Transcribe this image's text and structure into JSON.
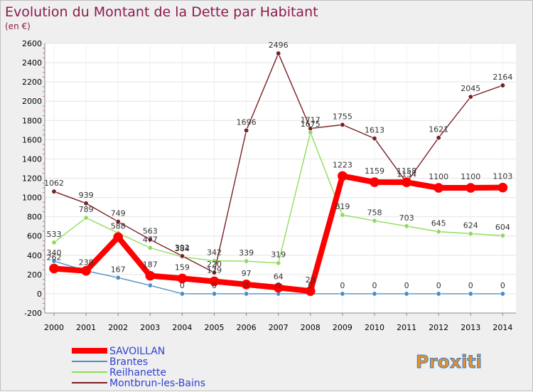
{
  "colors": {
    "title": "#8b1a4a",
    "SAVOILLAN": "#ff0000",
    "Brantes": "#4a8fc7",
    "Reilhanette": "#8fdc5c",
    "Montbrun-les-Bains": "#7a1e24",
    "axis_text": "#000000",
    "legend_text": "#2f3fd1"
  },
  "chart_data": {
    "type": "line",
    "title": "Evolution du Montant de la Dette par Habitant",
    "subtitle": "(en €)",
    "x": [
      "2000",
      "2001",
      "2002",
      "2003",
      "2004",
      "2005",
      "2006",
      "2007",
      "2008",
      "2009",
      "2010",
      "2011",
      "2012",
      "2013",
      "2014"
    ],
    "yticks": [
      "-200",
      "0",
      "200",
      "400",
      "600",
      "800",
      "1000",
      "1200",
      "1400",
      "1600",
      "1800",
      "2000",
      "2200",
      "2400",
      "2600"
    ],
    "ylim": [
      -200,
      2600
    ],
    "grid": true,
    "legend_position": "bottom-left",
    "series": [
      {
        "name": "Brantes",
        "values": [
          340,
          238,
          167,
          87,
          0,
          0,
          0,
          0,
          0,
          0,
          0,
          0,
          0,
          0,
          0
        ],
        "labels": [
          "340",
          "238",
          "167",
          "",
          "0",
          "0",
          "0",
          "0",
          "0",
          "0",
          "0",
          "0",
          "0",
          "0",
          "0"
        ]
      },
      {
        "name": "Reilhanette",
        "values": [
          533,
          789,
          630,
          477,
          384,
          342,
          339,
          319,
          1675,
          819,
          758,
          703,
          645,
          624,
          604
        ],
        "labels": [
          "533",
          "789",
          "",
          "477",
          "384",
          "342",
          "339",
          "319",
          "1675",
          "819",
          "758",
          "703",
          "645",
          "624",
          "604"
        ]
      },
      {
        "name": "Montbrun-les-Bains",
        "values": [
          1062,
          939,
          749,
          563,
          392,
          220,
          1696,
          2496,
          1717,
          1755,
          1613,
          1154,
          1621,
          2045,
          2164
        ],
        "labels": [
          "1062",
          "939",
          "749",
          "563",
          "392",
          "220",
          "1696",
          "2496",
          "1717",
          "1755",
          "1613",
          "1154",
          "1621",
          "2045",
          "2164"
        ]
      },
      {
        "name": "SAVOILLAN",
        "values": [
          262,
          238,
          588,
          187,
          159,
          129,
          97,
          64,
          28,
          1223,
          1159,
          1158,
          1100,
          1100,
          1103
        ],
        "labels": [
          "262",
          "",
          "588",
          "187",
          "159",
          "129",
          "97",
          "64",
          "28",
          "1223",
          "1159",
          "1158",
          "1100",
          "1100",
          "1103"
        ]
      }
    ],
    "legend": [
      "SAVOILLAN",
      "Brantes",
      "Reilhanette",
      "Montbrun-les-Bains"
    ]
  },
  "watermark": "Proxiti"
}
